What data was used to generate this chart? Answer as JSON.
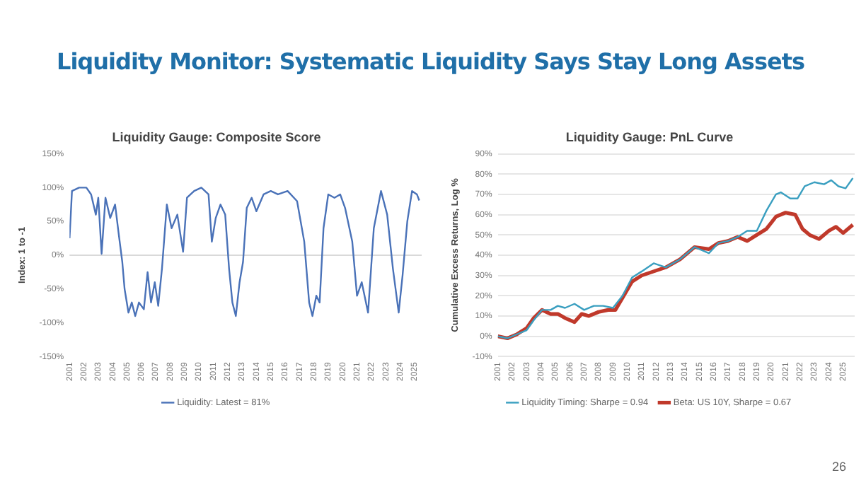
{
  "chart_data": [
    {
      "type": "other",
      "title": "Liquidity Monitor: Systematic Liquidity Says Stay Long Assets",
      "annotations": [
        "26"
      ]
    },
    {
      "type": "line",
      "title": "Liquidity Gauge: Composite Score",
      "ylabel": "Index: 1 to -1",
      "marker": "none",
      "line_style": "solid",
      "grid": false,
      "legend": "bottom",
      "x": [
        2001,
        2001.17,
        2001.67,
        2002.17,
        2002.5,
        2002.83,
        2003,
        2003.23,
        2003.5,
        2003.83,
        2004.17,
        2004.43,
        2004.67,
        2004.83,
        2005.1,
        2005.33,
        2005.57,
        2005.83,
        2006.17,
        2006.43,
        2006.67,
        2006.93,
        2007.17,
        2007.43,
        2007.77,
        2008.1,
        2008.5,
        2008.9,
        2009.17,
        2009.67,
        2010.17,
        2010.67,
        2010.9,
        2011.17,
        2011.5,
        2011.83,
        2012.1,
        2012.33,
        2012.57,
        2012.83,
        2013.07,
        2013.33,
        2013.67,
        2014,
        2014.5,
        2015,
        2015.5,
        2016.17,
        2016.83,
        2017.33,
        2017.67,
        2017.9,
        2018.17,
        2018.4,
        2018.67,
        2019,
        2019.43,
        2019.83,
        2020.17,
        2020.67,
        2021,
        2021.33,
        2021.77,
        2022.17,
        2022.67,
        2023.1,
        2023.5,
        2023.9,
        2024.17,
        2024.5,
        2024.83,
        2025.17,
        2025.33
      ],
      "series": [
        {
          "name": "Liquidity: Latest = 81%",
          "color": "#4a72b8",
          "values": [
            25,
            95,
            100,
            100,
            90,
            60,
            85,
            2,
            85,
            55,
            75,
            30,
            -10,
            -50,
            -85,
            -70,
            -90,
            -70,
            -80,
            -25,
            -70,
            -40,
            -75,
            -20,
            75,
            40,
            60,
            5,
            85,
            95,
            100,
            90,
            20,
            55,
            75,
            60,
            -20,
            -70,
            -90,
            -40,
            -10,
            70,
            85,
            65,
            90,
            95,
            90,
            95,
            80,
            20,
            -70,
            -90,
            -60,
            -70,
            40,
            90,
            85,
            90,
            70,
            20,
            -60,
            -40,
            -85,
            40,
            95,
            60,
            -20,
            -85,
            -30,
            50,
            95,
            90,
            81
          ]
        }
      ],
      "xlim": [
        2001,
        2025.5
      ],
      "xticks": [
        2001,
        2002,
        2003,
        2004,
        2005,
        2006,
        2007,
        2008,
        2009,
        2010,
        2011,
        2012,
        2013,
        2014,
        2015,
        2016,
        2017,
        2018,
        2019,
        2020,
        2021,
        2022,
        2023,
        2024,
        2025
      ],
      "ylim": [
        -150,
        150
      ],
      "yticks": [
        {
          "value": -150,
          "label": "-150%"
        },
        {
          "value": -100,
          "label": "-100%"
        },
        {
          "value": -50,
          "label": "-50%"
        },
        {
          "value": 0,
          "label": "0%"
        },
        {
          "value": 50,
          "label": "50%"
        },
        {
          "value": 100,
          "label": "100%"
        },
        {
          "value": 150,
          "label": "150%"
        }
      ],
      "ref_lines": [
        {
          "axis": "y",
          "value": 0,
          "color": "#d9d9d9"
        }
      ]
    },
    {
      "type": "line",
      "title": "Liquidity Gauge: PnL Curve",
      "ylabel": "Cumulative Excess Returns, Log %",
      "marker": "none",
      "line_style": "solid",
      "grid": "y",
      "legend": "bottom",
      "series": [
        {
          "name": "Liquidity Timing: Sharpe = 0.94",
          "color": "#3a9fc0",
          "x": [
            2001,
            2001.67,
            2002.33,
            2003,
            2003.5,
            2004.07,
            2004.67,
            2005.17,
            2005.67,
            2006.33,
            2007,
            2007.67,
            2008.33,
            2009,
            2009.67,
            2010.33,
            2011,
            2011.83,
            2012.67,
            2013.67,
            2014.67,
            2015.67,
            2016.33,
            2017,
            2017.67,
            2018.33,
            2019,
            2019.67,
            2020.33,
            2020.67,
            2021.33,
            2021.83,
            2022.33,
            2023,
            2023.67,
            2024.17,
            2024.67,
            2025.17,
            2025.67
          ],
          "values": [
            0,
            -1,
            1,
            3,
            8,
            13,
            13,
            15,
            14,
            16,
            13,
            15,
            15,
            14,
            20,
            29,
            32,
            36,
            34,
            38,
            44,
            41,
            46,
            47,
            49,
            52,
            52,
            62,
            70,
            71,
            68,
            68,
            74,
            76,
            75,
            77,
            74,
            73,
            78
          ]
        },
        {
          "name": "Beta: US 10Y, Sharpe = 0.67",
          "color": "#c0392b",
          "x": [
            2001,
            2001.67,
            2002.33,
            2003,
            2003.5,
            2004.07,
            2004.67,
            2005.17,
            2005.67,
            2006.33,
            2006.83,
            2007.33,
            2008,
            2008.67,
            2009.17,
            2009.67,
            2010.33,
            2011,
            2011.83,
            2012.67,
            2013.67,
            2014.67,
            2015.67,
            2016.33,
            2017,
            2017.67,
            2018.33,
            2019,
            2019.67,
            2020.33,
            2021,
            2021.67,
            2022.17,
            2022.67,
            2023.33,
            2024,
            2024.5,
            2025,
            2025.67
          ],
          "values": [
            0,
            -1,
            1,
            4,
            9,
            13,
            11,
            11,
            9,
            7,
            11,
            10,
            12,
            13,
            13,
            19,
            27,
            30,
            32,
            34,
            38,
            44,
            43,
            46,
            47,
            49,
            47,
            50,
            53,
            59,
            61,
            60,
            53,
            50,
            48,
            52,
            54,
            51,
            55
          ]
        }
      ],
      "xlim": [
        2001,
        2025.8
      ],
      "xticks": [
        2001,
        2002,
        2003,
        2004,
        2005,
        2006,
        2007,
        2008,
        2009,
        2010,
        2011,
        2012,
        2013,
        2014,
        2015,
        2016,
        2017,
        2018,
        2019,
        2020,
        2021,
        2022,
        2023,
        2024,
        2025
      ],
      "ylim": [
        -10,
        90
      ],
      "yticks": [
        {
          "value": -10,
          "label": "-10%"
        },
        {
          "value": 0,
          "label": "0%"
        },
        {
          "value": 10,
          "label": "10%"
        },
        {
          "value": 20,
          "label": "20%"
        },
        {
          "value": 30,
          "label": "30%"
        },
        {
          "value": 40,
          "label": "40%"
        },
        {
          "value": 50,
          "label": "50%"
        },
        {
          "value": 60,
          "label": "60%"
        },
        {
          "value": 70,
          "label": "70%"
        },
        {
          "value": 80,
          "label": "80%"
        },
        {
          "value": 90,
          "label": "90%"
        }
      ]
    }
  ]
}
